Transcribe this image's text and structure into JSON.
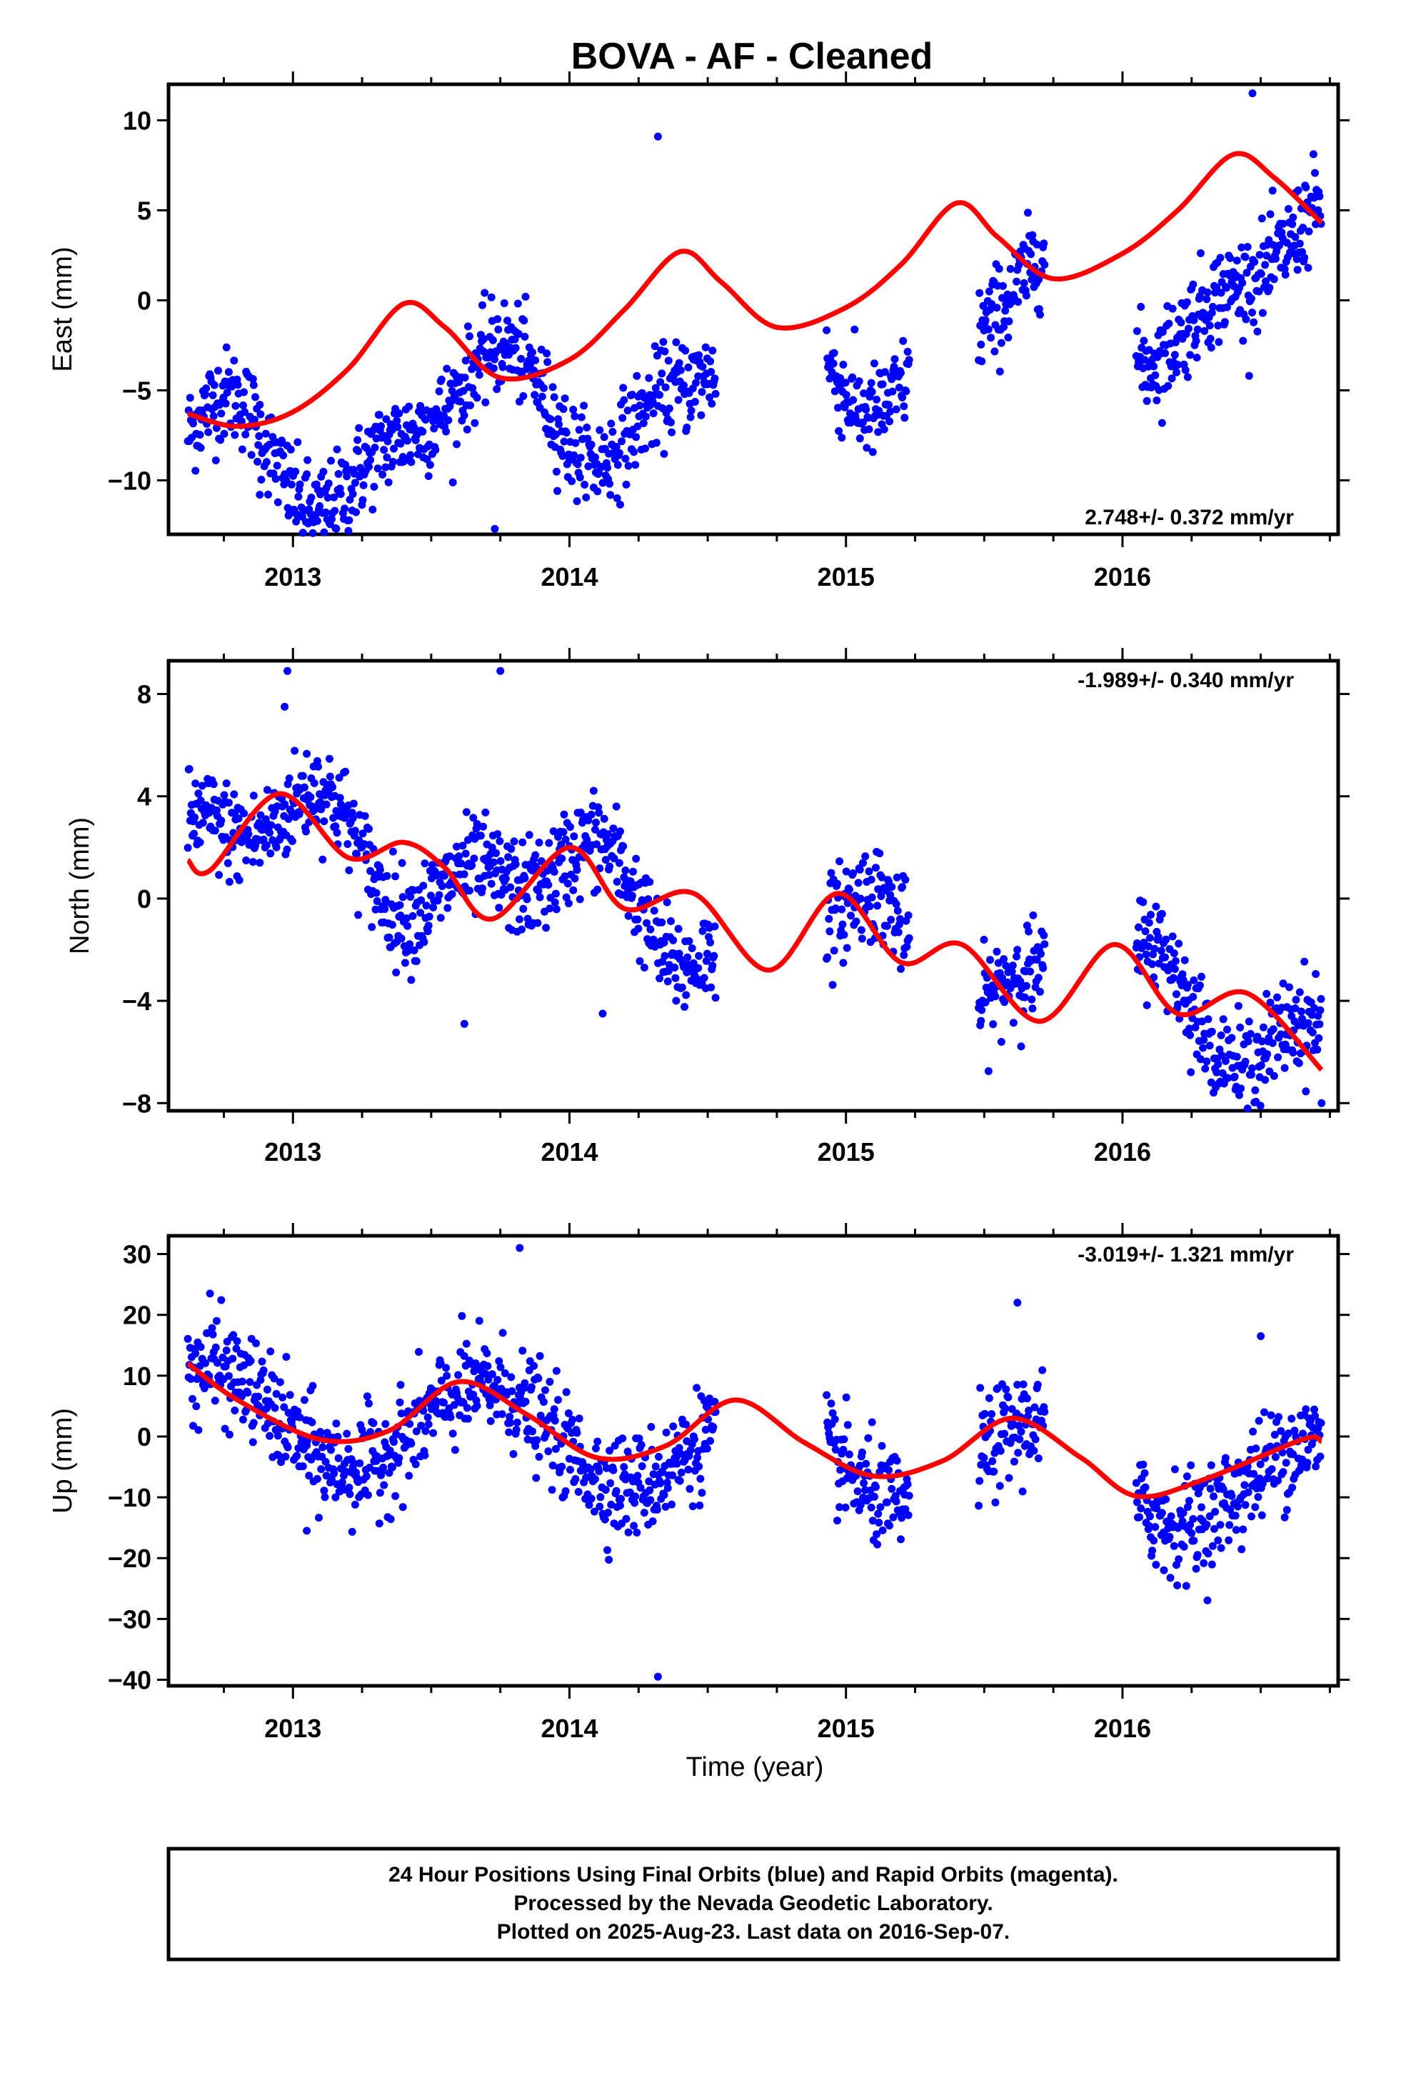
{
  "title": "BOVA  - AF - Cleaned",
  "xlabel": "Time (year)",
  "footer": {
    "line1": "24 Hour Positions Using Final Orbits (blue) and Rapid Orbits (magenta).",
    "line2": "Processed by the Nevada Geodetic Laboratory.",
    "line3": "Plotted on 2025-Aug-23. Last data on 2016-Sep-07."
  },
  "colors": {
    "points": "#0000ff",
    "model": "#ff0000",
    "frame": "#000000"
  },
  "chart_data": [
    {
      "type": "scatter",
      "ylabel": "East (mm)",
      "rate_text": "2.748+/- 0.372 mm/yr",
      "xlim": [
        2012.55,
        2016.78
      ],
      "ylim": [
        -13,
        12
      ],
      "x_ticks": [
        2013,
        2014,
        2015,
        2016
      ],
      "y_ticks": [
        -10,
        -5,
        0,
        5,
        10
      ],
      "series": [
        {
          "kind": "points",
          "segments": [
            [
              2012.62,
              2014.53
            ],
            [
              2014.93,
              2015.23
            ],
            [
              2015.48,
              2015.72
            ],
            [
              2016.05,
              2016.72
            ]
          ],
          "model": {
            "c0": -4.0,
            "rate": 2.748,
            "t0": 2014.6,
            "sa": 3.0,
            "sa_phase": 0.43,
            "ssa": 1.3,
            "ssa_phase": 0.17,
            "scatter": 1.3
          },
          "outliers": [
            [
              2013.73,
              -12.7
            ],
            [
              2014.32,
              9.1
            ],
            [
              2016.47,
              11.5
            ],
            [
              2013.07,
              -12.1
            ],
            [
              2012.88,
              -10.8
            ]
          ]
        },
        {
          "kind": "model",
          "points": [
            [
              2012.62,
              -6.3
            ],
            [
              2012.8,
              -7.0
            ],
            [
              2013.0,
              -6.2
            ],
            [
              2013.2,
              -3.8
            ],
            [
              2013.4,
              -0.2
            ],
            [
              2013.55,
              -1.5
            ],
            [
              2013.75,
              -4.3
            ],
            [
              2014.0,
              -3.3
            ],
            [
              2014.2,
              -0.5
            ],
            [
              2014.4,
              2.7
            ],
            [
              2014.55,
              1.0
            ],
            [
              2014.75,
              -1.5
            ],
            [
              2015.0,
              -0.4
            ],
            [
              2015.2,
              2.0
            ],
            [
              2015.4,
              5.4
            ],
            [
              2015.55,
              3.5
            ],
            [
              2015.75,
              1.2
            ],
            [
              2016.0,
              2.6
            ],
            [
              2016.2,
              5.0
            ],
            [
              2016.4,
              8.1
            ],
            [
              2016.55,
              6.8
            ],
            [
              2016.72,
              4.3
            ]
          ]
        }
      ]
    },
    {
      "type": "scatter",
      "ylabel": "North (mm)",
      "rate_text": "-1.989+/- 0.340 mm/yr",
      "xlim": [
        2012.55,
        2016.78
      ],
      "ylim": [
        -8.3,
        9.3
      ],
      "x_ticks": [
        2013,
        2014,
        2015,
        2016
      ],
      "y_ticks": [
        -8,
        -4,
        0,
        4,
        8
      ],
      "series": [
        {
          "kind": "points",
          "segments": [
            [
              2012.62,
              2014.53
            ],
            [
              2014.93,
              2015.23
            ],
            [
              2015.48,
              2015.72
            ],
            [
              2016.05,
              2016.72
            ]
          ],
          "model": {
            "c0": -0.9,
            "rate": -1.989,
            "t0": 2014.6,
            "sa": 1.4,
            "sa_phase": 0.75,
            "ssa": 1.1,
            "ssa_phase": 0.0,
            "scatter": 0.95
          },
          "outliers": [
            [
              2012.98,
              8.9
            ],
            [
              2013.75,
              8.9
            ],
            [
              2012.97,
              7.5
            ],
            [
              2014.12,
              -4.5
            ],
            [
              2013.62,
              -4.9
            ],
            [
              2016.72,
              -8.0
            ]
          ]
        },
        {
          "kind": "model",
          "points": [
            [
              2012.62,
              1.5
            ],
            [
              2012.7,
              1.1
            ],
            [
              2012.95,
              4.1
            ],
            [
              2013.2,
              1.6
            ],
            [
              2013.4,
              2.2
            ],
            [
              2013.55,
              1.2
            ],
            [
              2013.72,
              -0.8
            ],
            [
              2014.0,
              2.0
            ],
            [
              2014.2,
              -0.4
            ],
            [
              2014.45,
              0.2
            ],
            [
              2014.72,
              -2.8
            ],
            [
              2014.97,
              0.2
            ],
            [
              2015.2,
              -2.5
            ],
            [
              2015.42,
              -1.8
            ],
            [
              2015.7,
              -4.8
            ],
            [
              2015.97,
              -1.8
            ],
            [
              2016.2,
              -4.5
            ],
            [
              2016.45,
              -3.7
            ],
            [
              2016.72,
              -6.7
            ]
          ]
        }
      ]
    },
    {
      "type": "scatter",
      "ylabel": "Up (mm)",
      "rate_text": "-3.019+/- 1.321 mm/yr",
      "xlim": [
        2012.55,
        2016.78
      ],
      "ylim": [
        -41,
        33
      ],
      "x_ticks": [
        2013,
        2014,
        2015,
        2016
      ],
      "y_ticks": [
        -40,
        -30,
        -20,
        -10,
        0,
        10,
        20,
        30
      ],
      "series": [
        {
          "kind": "points",
          "segments": [
            [
              2012.62,
              2014.53
            ],
            [
              2014.93,
              2015.23
            ],
            [
              2015.48,
              2015.72
            ],
            [
              2016.05,
              2016.72
            ]
          ],
          "model": {
            "c0": -2.0,
            "rate": -3.019,
            "t0": 2014.6,
            "sa": 7.5,
            "sa_phase": 0.45,
            "ssa": 0,
            "ssa_phase": 0,
            "scatter": 4.2
          },
          "outliers": [
            [
              2013.82,
              31.0
            ],
            [
              2014.32,
              -39.5
            ],
            [
              2012.7,
              23.5
            ],
            [
              2015.62,
              22.0
            ],
            [
              2013.05,
              -15.5
            ],
            [
              2016.15,
              -22.0
            ],
            [
              2016.5,
              16.5
            ]
          ]
        },
        {
          "kind": "model",
          "points": [
            [
              2012.62,
              12.0
            ],
            [
              2012.8,
              6.0
            ],
            [
              2013.1,
              -0.5
            ],
            [
              2013.35,
              1.0
            ],
            [
              2013.6,
              9.0
            ],
            [
              2013.85,
              3.5
            ],
            [
              2014.1,
              -3.5
            ],
            [
              2014.35,
              -1.5
            ],
            [
              2014.6,
              6.0
            ],
            [
              2014.85,
              -1.0
            ],
            [
              2015.1,
              -6.5
            ],
            [
              2015.35,
              -4.0
            ],
            [
              2015.6,
              3.0
            ],
            [
              2015.85,
              -3.5
            ],
            [
              2016.05,
              -9.8
            ],
            [
              2016.3,
              -7.0
            ],
            [
              2016.65,
              -0.5
            ],
            [
              2016.72,
              -0.8
            ]
          ]
        }
      ]
    }
  ]
}
